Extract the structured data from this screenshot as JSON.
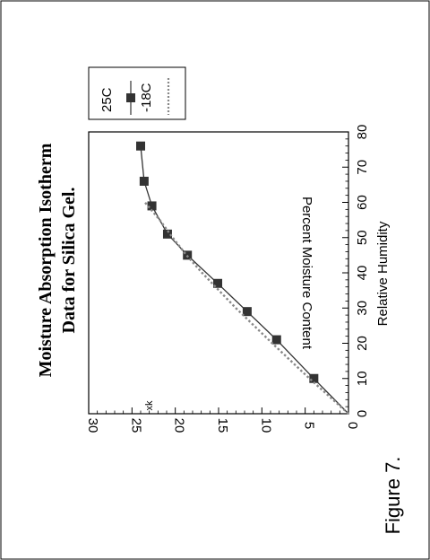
{
  "caption": "Figure 7.",
  "chart_data": {
    "type": "line",
    "title": "Moisture Absorption Isotherm",
    "subtitle": "Data for Silica Gel.",
    "xlabel": "Relative Humidity",
    "ylabel": "Percent Moisture Content",
    "xlim": [
      0,
      80
    ],
    "ylim": [
      0,
      30
    ],
    "xticks": [
      "0",
      "10",
      "20",
      "30",
      "40",
      "50",
      "60",
      "70",
      "80"
    ],
    "yticks": [
      "0",
      "5",
      "10",
      "15",
      "20",
      "25",
      "30"
    ],
    "legend_position": "outside-top-right",
    "annotation": "xk",
    "series": [
      {
        "name": "25C",
        "color": "#333333",
        "style": "solid",
        "marker": "square",
        "x": [
          0,
          10,
          21,
          29,
          37,
          45,
          51,
          59,
          66,
          76
        ],
        "y": [
          0,
          4,
          8.3,
          11.7,
          15.1,
          18.6,
          20.9,
          22.7,
          23.6,
          24
        ]
      },
      {
        "name": "-18C",
        "color": "#888888",
        "style": "dotted",
        "marker": "none",
        "x": [
          0,
          10,
          20,
          30,
          40,
          45,
          50,
          55,
          60
        ],
        "y": [
          0,
          4.5,
          8.8,
          13,
          16.9,
          18.7,
          20.3,
          21.8,
          23.5
        ]
      }
    ]
  }
}
